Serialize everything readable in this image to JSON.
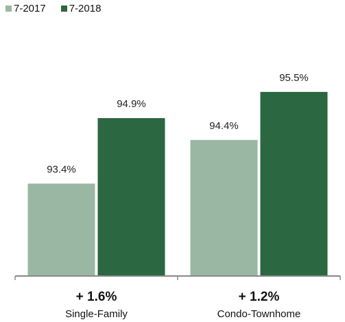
{
  "chart_data": {
    "type": "bar",
    "categories": [
      "Single-Family",
      "Condo-Townhome"
    ],
    "series": [
      {
        "name": "7-2017",
        "values": [
          93.4,
          94.4
        ],
        "labels": [
          "93.4%",
          "94.4%"
        ],
        "color": "#9ab7a3"
      },
      {
        "name": "7-2018",
        "values": [
          94.9,
          95.5
        ],
        "labels": [
          "94.9%",
          "95.5%"
        ],
        "color": "#2b6741"
      }
    ],
    "changes": [
      "+ 1.6%",
      "+ 1.2%"
    ],
    "ylim": [
      91.3,
      96.5
    ],
    "legend": "top-left",
    "grid": false
  }
}
